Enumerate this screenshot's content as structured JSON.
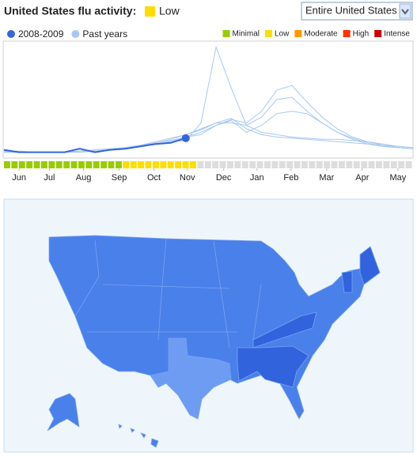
{
  "header": {
    "title": "United States flu activity:",
    "level": "Low",
    "level_color": "#ffdd00",
    "region_select": "Entire United States"
  },
  "chart_data": {
    "type": "line",
    "x": [
      0,
      2,
      4,
      6,
      8,
      10,
      12,
      14,
      16,
      18,
      20,
      22,
      24,
      26,
      28,
      30,
      32,
      34,
      36,
      38,
      40,
      42,
      44,
      46,
      48,
      50,
      52,
      54
    ],
    "xlim": [
      0,
      54
    ],
    "xticks": [
      {
        "value": 2,
        "label": "Jun"
      },
      {
        "value": 6,
        "label": "Jul"
      },
      {
        "value": 10.5,
        "label": "Aug"
      },
      {
        "value": 15.2,
        "label": "Sep"
      },
      {
        "value": 19.8,
        "label": "Oct"
      },
      {
        "value": 24.2,
        "label": "Nov"
      },
      {
        "value": 29,
        "label": "Dec"
      },
      {
        "value": 33.4,
        "label": "Jan"
      },
      {
        "value": 37.9,
        "label": "Feb"
      },
      {
        "value": 42.6,
        "label": "Mar"
      },
      {
        "value": 47.3,
        "label": "Apr"
      },
      {
        "value": 52,
        "label": "May"
      }
    ],
    "ylim": [
      0,
      100
    ],
    "series": [
      {
        "name": "2008-2009",
        "color": "#3366dd",
        "values": [
          7,
          5,
          5,
          5,
          5,
          8,
          5,
          7,
          8,
          10,
          12,
          13,
          17,
          null,
          null,
          null,
          null,
          null,
          null,
          null,
          null,
          null,
          null,
          null,
          null,
          null,
          null,
          null
        ]
      },
      {
        "name": "Past years",
        "color": "#a8c8f0",
        "lines": [
          [
            5,
            5,
            5,
            5,
            5,
            5,
            6,
            7,
            8,
            10,
            12,
            14,
            15,
            30,
            95,
            60,
            28,
            22,
            20,
            18,
            17,
            16,
            16,
            15,
            14,
            12,
            10,
            9
          ],
          [
            6,
            5,
            5,
            5,
            5,
            5,
            6,
            7,
            8,
            10,
            12,
            14,
            18,
            22,
            28,
            33,
            30,
            40,
            58,
            62,
            48,
            35,
            25,
            18,
            14,
            11,
            9,
            8
          ],
          [
            6,
            5,
            5,
            5,
            5,
            6,
            6,
            7,
            9,
            11,
            13,
            16,
            20,
            24,
            30,
            34,
            25,
            20,
            18,
            17,
            16,
            15,
            14,
            13,
            12,
            11,
            10,
            9
          ],
          [
            6,
            6,
            5,
            5,
            5,
            6,
            7,
            8,
            9,
            11,
            14,
            17,
            20,
            25,
            30,
            30,
            28,
            35,
            50,
            52,
            40,
            30,
            22,
            17,
            13,
            10,
            9,
            8
          ],
          [
            5,
            5,
            5,
            5,
            5,
            6,
            7,
            8,
            9,
            10,
            13,
            15,
            18,
            20,
            28,
            32,
            22,
            28,
            38,
            40,
            38,
            30,
            22,
            16,
            12,
            10,
            9,
            8
          ]
        ]
      }
    ],
    "activity_levels": [
      {
        "name": "Minimal",
        "color": "#99cc00"
      },
      {
        "name": "Low",
        "color": "#ffdd00"
      },
      {
        "name": "Moderate",
        "color": "#ff9900"
      },
      {
        "name": "High",
        "color": "#ff3300"
      },
      {
        "name": "Intense",
        "color": "#cc0000"
      }
    ],
    "activity": [
      0,
      0,
      0,
      0,
      0,
      0,
      0,
      0,
      0,
      0,
      0,
      0,
      0,
      0,
      0,
      0,
      1,
      1,
      1,
      1,
      1,
      1,
      1,
      1,
      1,
      1,
      null,
      null,
      null,
      null,
      null,
      null,
      null,
      null,
      null,
      null,
      null,
      null,
      null,
      null,
      null,
      null,
      null,
      null,
      null,
      null,
      null,
      null,
      null,
      null,
      null,
      null,
      null,
      null,
      null
    ]
  }
}
